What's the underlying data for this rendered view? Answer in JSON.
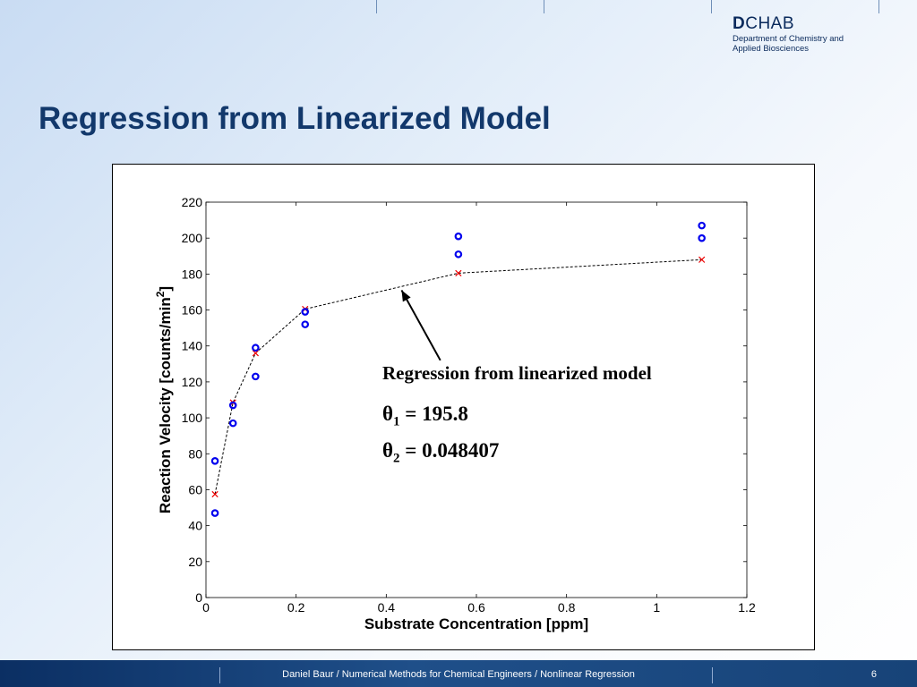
{
  "logo": {
    "mark_bold": "D",
    "mark_rest": "CHAB",
    "line1": "Department of Chemistry and",
    "line2": "Applied Biosciences"
  },
  "slide": {
    "title": "Regression from Linearized Model",
    "footer": "Daniel Baur / Numerical Methods for Chemical Engineers / Nonlinear Regression",
    "page_number": "6"
  },
  "annotation": {
    "title": "Regression from linearized model",
    "theta1_symbol": "θ",
    "theta1_sub": "1",
    "theta1_value": " = 195.8",
    "theta2_symbol": "θ",
    "theta2_sub": "2",
    "theta2_value": " = 0.048407"
  },
  "chart_data": {
    "type": "scatter",
    "xlabel": "Substrate Concentration [ppm]",
    "ylabel": "Reaction Velocity [counts/min",
    "ylabel_sup": "2",
    "ylabel_end": "]",
    "xlim": [
      0,
      1.2
    ],
    "ylim": [
      0,
      220
    ],
    "xticks": [
      0,
      0.2,
      0.4,
      0.6,
      0.8,
      1,
      1.2
    ],
    "yticks": [
      0,
      20,
      40,
      60,
      80,
      100,
      120,
      140,
      160,
      180,
      200,
      220
    ],
    "grid": false,
    "series": [
      {
        "marker": "circle",
        "color": "#0000ee",
        "x": [
          0.02,
          0.02,
          0.06,
          0.06,
          0.11,
          0.11,
          0.22,
          0.22,
          0.56,
          0.56,
          1.1,
          1.1
        ],
        "y": [
          76,
          47,
          97,
          107,
          123,
          139,
          159,
          152,
          191,
          201,
          207,
          200
        ]
      },
      {
        "marker": "x",
        "line": "dashed",
        "color": "#ee0000",
        "line_color": "#000000",
        "x": [
          0.02,
          0.06,
          0.11,
          0.22,
          0.56,
          1.1
        ],
        "y": [
          57.5,
          108.5,
          136,
          160.5,
          180.5,
          188
        ]
      }
    ],
    "arrow": {
      "from": [
        0.52,
        172
      ],
      "to": [
        0.43,
        173
      ],
      "tail_y": 132
    }
  }
}
